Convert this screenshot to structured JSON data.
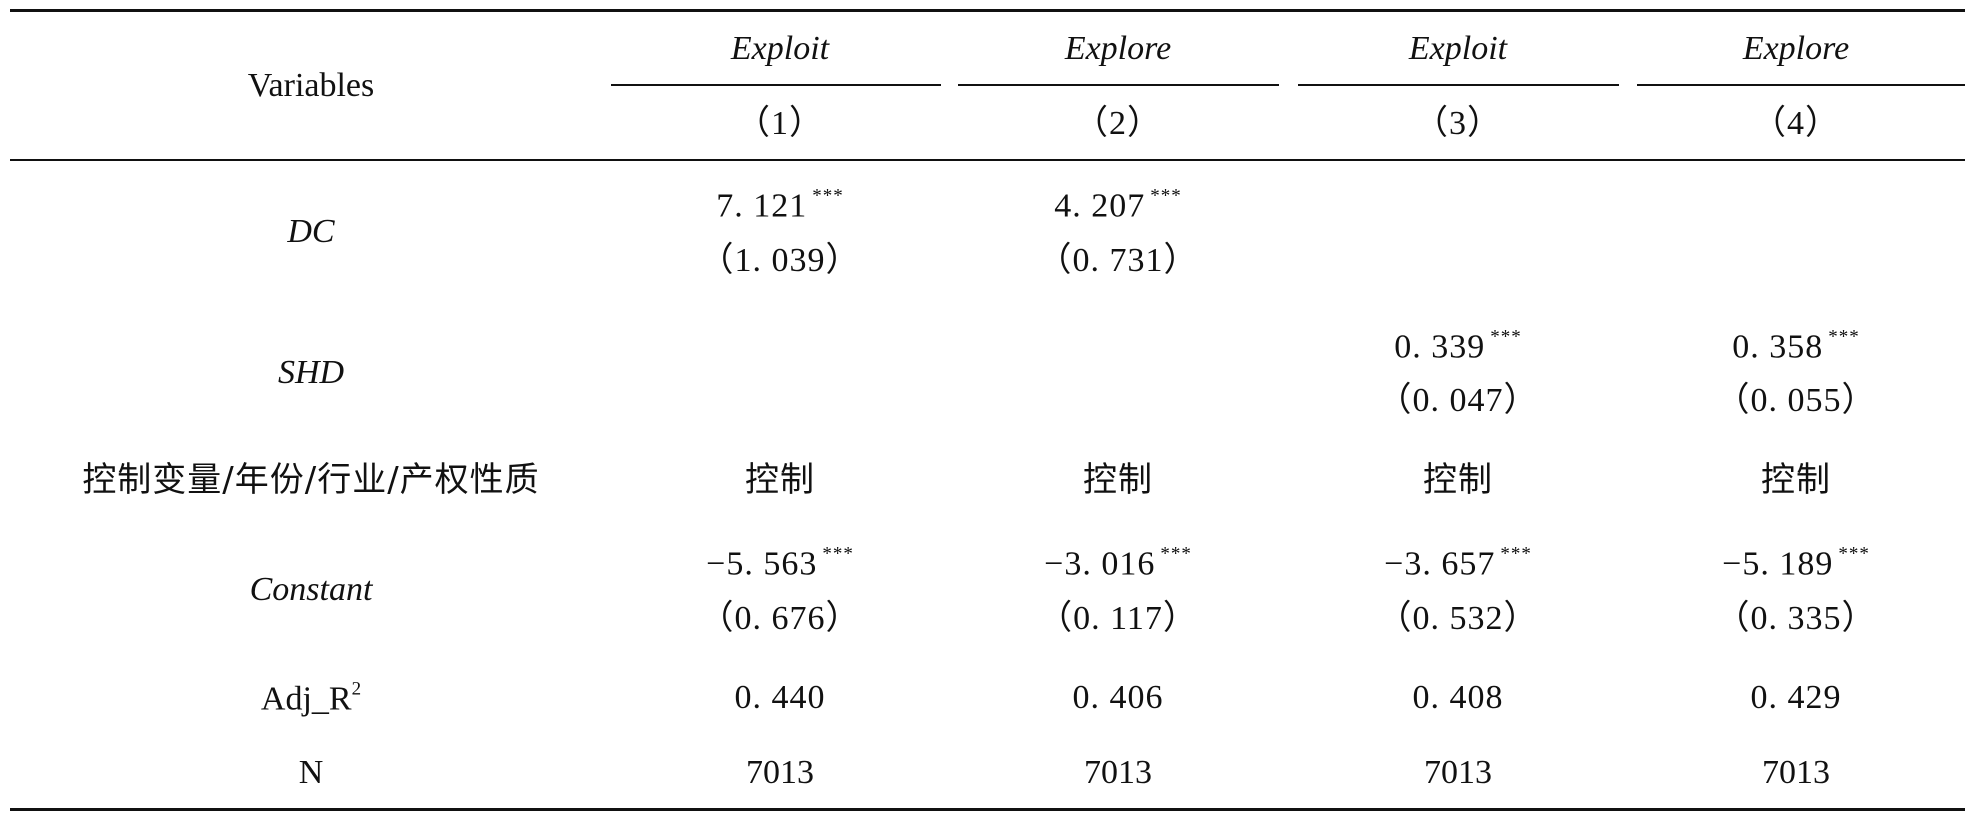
{
  "table": {
    "header": {
      "variables_label": "Variables",
      "columns": [
        {
          "model": "Exploit",
          "number": "（1）"
        },
        {
          "model": "Explore",
          "number": "（2）"
        },
        {
          "model": "Exploit",
          "number": "（3）"
        },
        {
          "model": "Explore",
          "number": "（4）"
        }
      ]
    },
    "rows": {
      "dc": {
        "label": "DC",
        "c1_coef": "7. 121",
        "c1_stars": "***",
        "c1_se": "（1. 039）",
        "c2_coef": "4. 207",
        "c2_stars": "***",
        "c2_se": "（0. 731）"
      },
      "shd": {
        "label": "SHD",
        "c3_coef": "0. 339",
        "c3_stars": "***",
        "c3_se": "（0. 047）",
        "c4_coef": "0. 358",
        "c4_stars": "***",
        "c4_se": "（0. 055）"
      },
      "controls": {
        "label": "控制变量/年份/行业/产权性质",
        "values": [
          "控制",
          "控制",
          "控制",
          "控制"
        ]
      },
      "constant": {
        "label": "Constant",
        "coefs": [
          "−5. 563",
          "−3. 016",
          "−3. 657",
          "−5. 189"
        ],
        "stars": [
          "***",
          "***",
          "***",
          "***"
        ],
        "ses": [
          "（0. 676）",
          "（0. 117）",
          "（0. 532）",
          "（0. 335）"
        ]
      },
      "adj_r2": {
        "label_base": "Adj_R",
        "label_sup": "2",
        "values": [
          "0. 440",
          "0. 406",
          "0. 408",
          "0. 429"
        ]
      },
      "n": {
        "label": "N",
        "values": [
          "7013",
          "7013",
          "7013",
          "7013"
        ]
      }
    }
  }
}
